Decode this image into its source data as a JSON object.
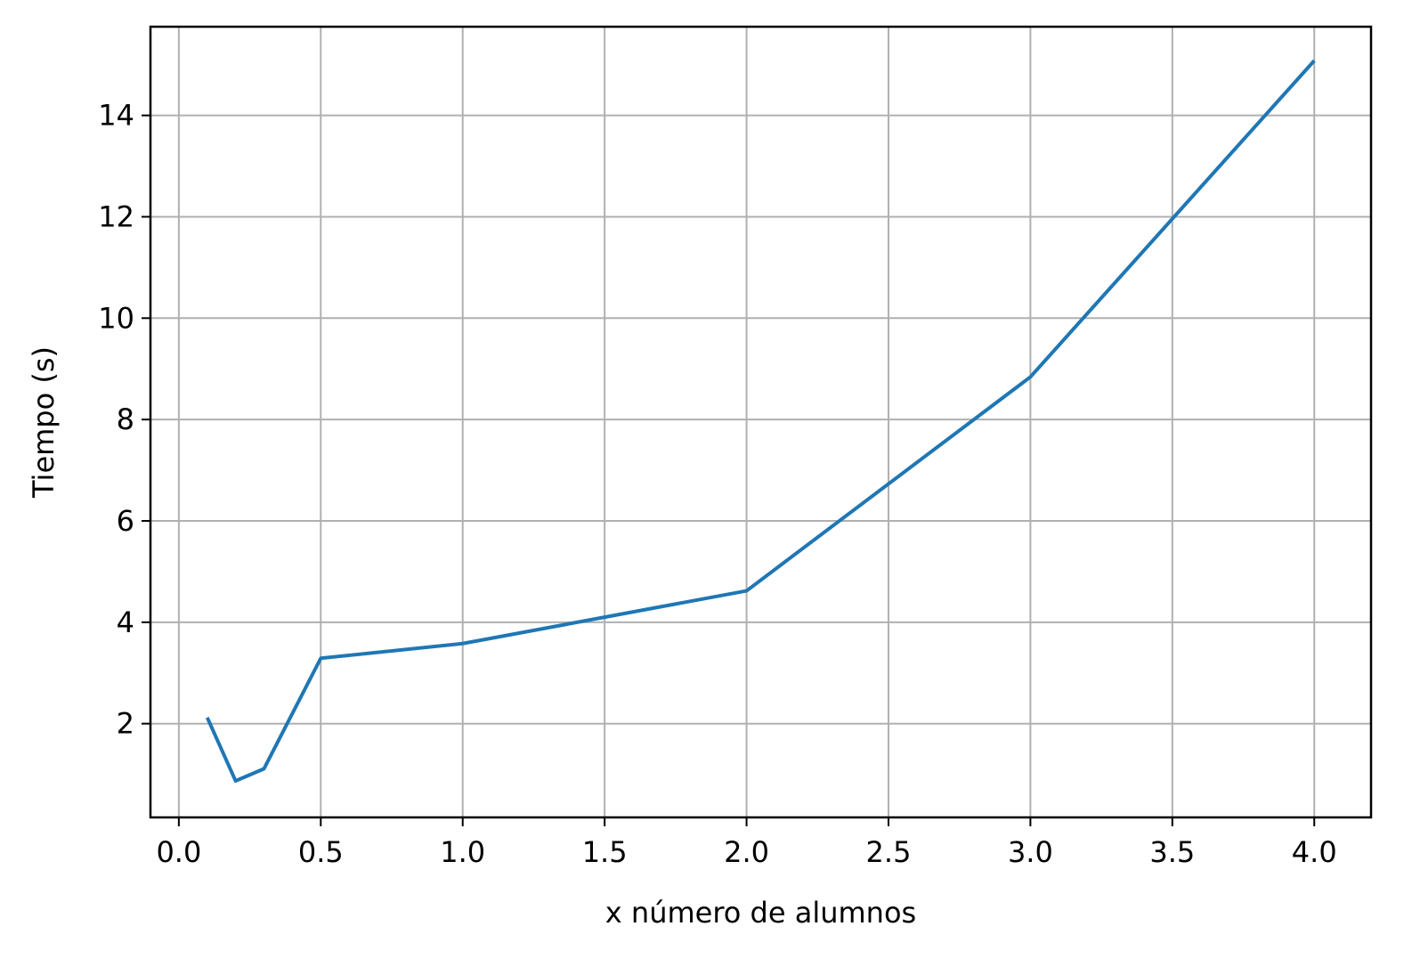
{
  "chart_data": {
    "type": "line",
    "title": "",
    "xlabel": "x número de alumnos",
    "ylabel": "Tiempo (s)",
    "xlim": [
      -0.1,
      4.2
    ],
    "ylim": [
      0.15,
      15.75
    ],
    "x_ticks": [
      0.0,
      0.5,
      1.0,
      1.5,
      2.0,
      2.5,
      3.0,
      3.5,
      4.0
    ],
    "x_tick_labels": [
      "0.0",
      "0.5",
      "1.0",
      "1.5",
      "2.0",
      "2.5",
      "3.0",
      "3.5",
      "4.0"
    ],
    "y_ticks": [
      2,
      4,
      6,
      8,
      10,
      12,
      14
    ],
    "y_tick_labels": [
      "2",
      "4",
      "6",
      "8",
      "10",
      "12",
      "14"
    ],
    "grid": true,
    "legend": "none",
    "series": [
      {
        "color": "#1f77b4",
        "x": [
          0.1,
          0.2,
          0.3,
          0.5,
          1.0,
          2.0,
          3.0,
          4.0
        ],
        "y": [
          2.12,
          0.87,
          1.11,
          3.29,
          3.58,
          4.62,
          8.84,
          15.08
        ]
      }
    ],
    "colors": {
      "grid": "#b0b0b0",
      "axes": "#000000",
      "line": "#1f77b4"
    }
  }
}
